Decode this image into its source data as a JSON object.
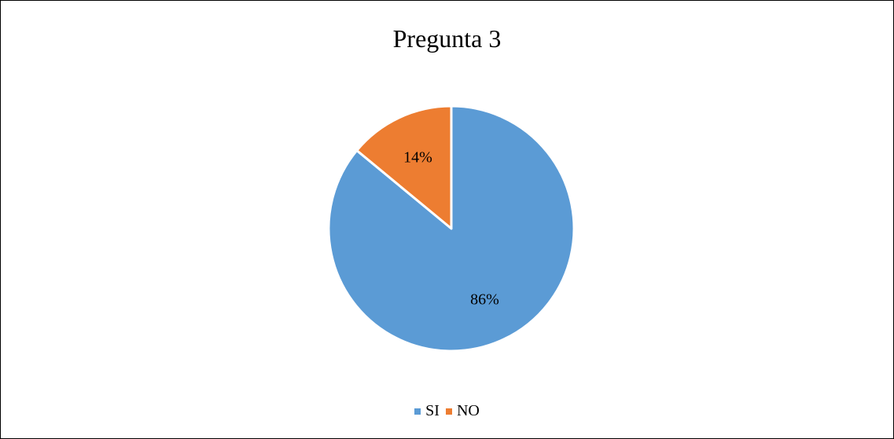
{
  "chart_data": {
    "type": "pie",
    "title": "Pregunta 3",
    "categories": [
      "SI",
      "NO"
    ],
    "values": [
      86,
      14
    ],
    "data_labels": [
      "86%",
      "14%"
    ],
    "colors": [
      "#5B9BD5",
      "#ED7D31"
    ],
    "legend_position": "bottom"
  }
}
